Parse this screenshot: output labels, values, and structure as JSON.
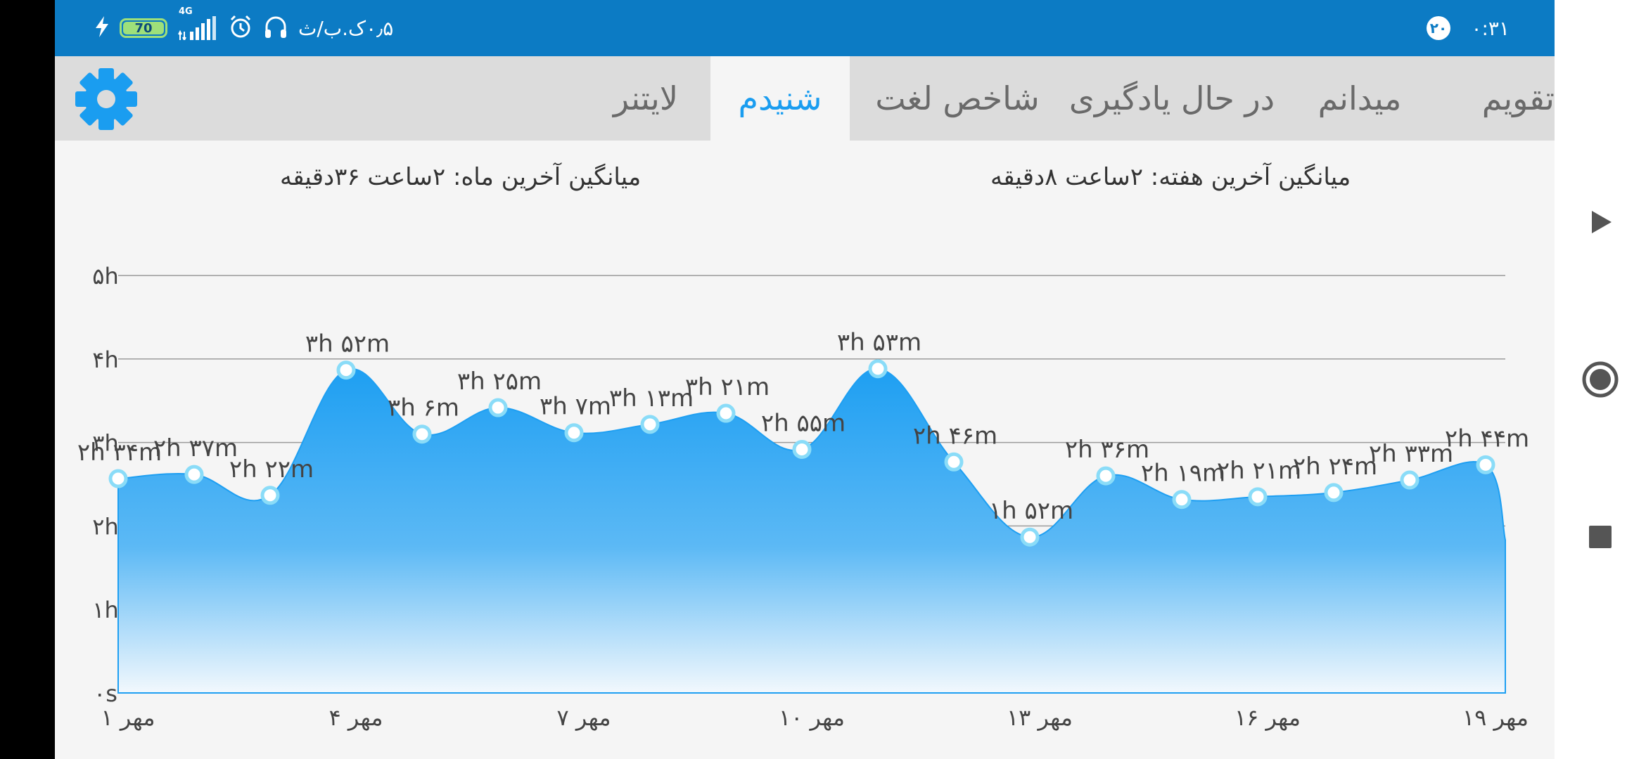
{
  "status_bar": {
    "clock": "۰:۳۱",
    "notification_count": "۲۰",
    "network_speed": "۰٫۵ک.ب/ث",
    "network_type": "4G",
    "battery_level": "70",
    "icons": [
      "notification-badge",
      "headphones-icon",
      "alarm-icon",
      "signal-icon",
      "battery-icon",
      "charging-icon"
    ]
  },
  "tabs": [
    {
      "label": "تقویم",
      "active": false
    },
    {
      "label": "میدانم",
      "active": false
    },
    {
      "label": "در حال یادگیری",
      "active": false
    },
    {
      "label": "شاخص لغت",
      "active": false
    },
    {
      "label": "شنیدم",
      "active": true
    },
    {
      "label": "لایتنر",
      "active": false
    }
  ],
  "settings_icon": "gear-icon",
  "averages": {
    "week_label": "میانگین آخرین هفته:",
    "week_value": "۲ساعت  ۸دقیقه",
    "month_label": "میانگین آخرین ماه:",
    "month_value": "۲ساعت  ۳۶دقیقه"
  },
  "chart_data": {
    "type": "area",
    "y_unit": "hours",
    "ylim": [
      0,
      5
    ],
    "y_ticks": [
      "۰s",
      "۱h",
      "۲h",
      "۳h",
      "۴h",
      "۵h"
    ],
    "grid": true,
    "x_ticks": [
      "۱ مهر",
      "۴ مهر",
      "۷ مهر",
      "۱۰ مهر",
      "۱۳ مهر",
      "۱۶ مهر",
      "۱۹ مهر"
    ],
    "x_tick_days": [
      1,
      4,
      7,
      10,
      13,
      16,
      19
    ],
    "x": [
      1,
      2,
      3,
      4,
      5,
      6,
      7,
      8,
      9,
      10,
      11,
      12,
      13,
      14,
      15,
      16,
      17,
      18,
      19
    ],
    "values": [
      2.567,
      2.617,
      2.367,
      3.867,
      3.1,
      3.417,
      3.117,
      3.217,
      3.35,
      2.917,
      3.883,
      2.767,
      1.867,
      2.6,
      2.317,
      2.35,
      2.4,
      2.55,
      2.733
    ],
    "point_labels": [
      "۲h ۳۴m",
      "۲h ۳۷m",
      "۲h ۲۲m",
      "۳h ۵۲m",
      "۳h ۶m",
      "۳h ۲۵m",
      "۳h ۷m",
      "۳h ۱۳m",
      "۳h ۲۱m",
      "۲h ۵۵m",
      "۳h ۵۳m",
      "۲h ۴۶m",
      "۱h ۵۲m",
      "۲h ۳۶m",
      "۲h ۱۹m",
      "۲h ۲۱m",
      "۲h ۲۴m",
      "۲h ۳۳m",
      "۲h ۴۴m"
    ],
    "colors": {
      "area_top": "#1e9ff2",
      "area_mid": "#5cb9f5",
      "area_bottom": "#f2f8fd",
      "line": "#1e9ff2",
      "point_fill": "#ffffff",
      "point_stroke": "#8adcf8",
      "grid": "#9a9a9a",
      "text": "#444444"
    }
  },
  "nav_bar": {
    "icons": [
      "play-triangle-icon",
      "record-circle-icon",
      "stop-square-icon"
    ]
  }
}
